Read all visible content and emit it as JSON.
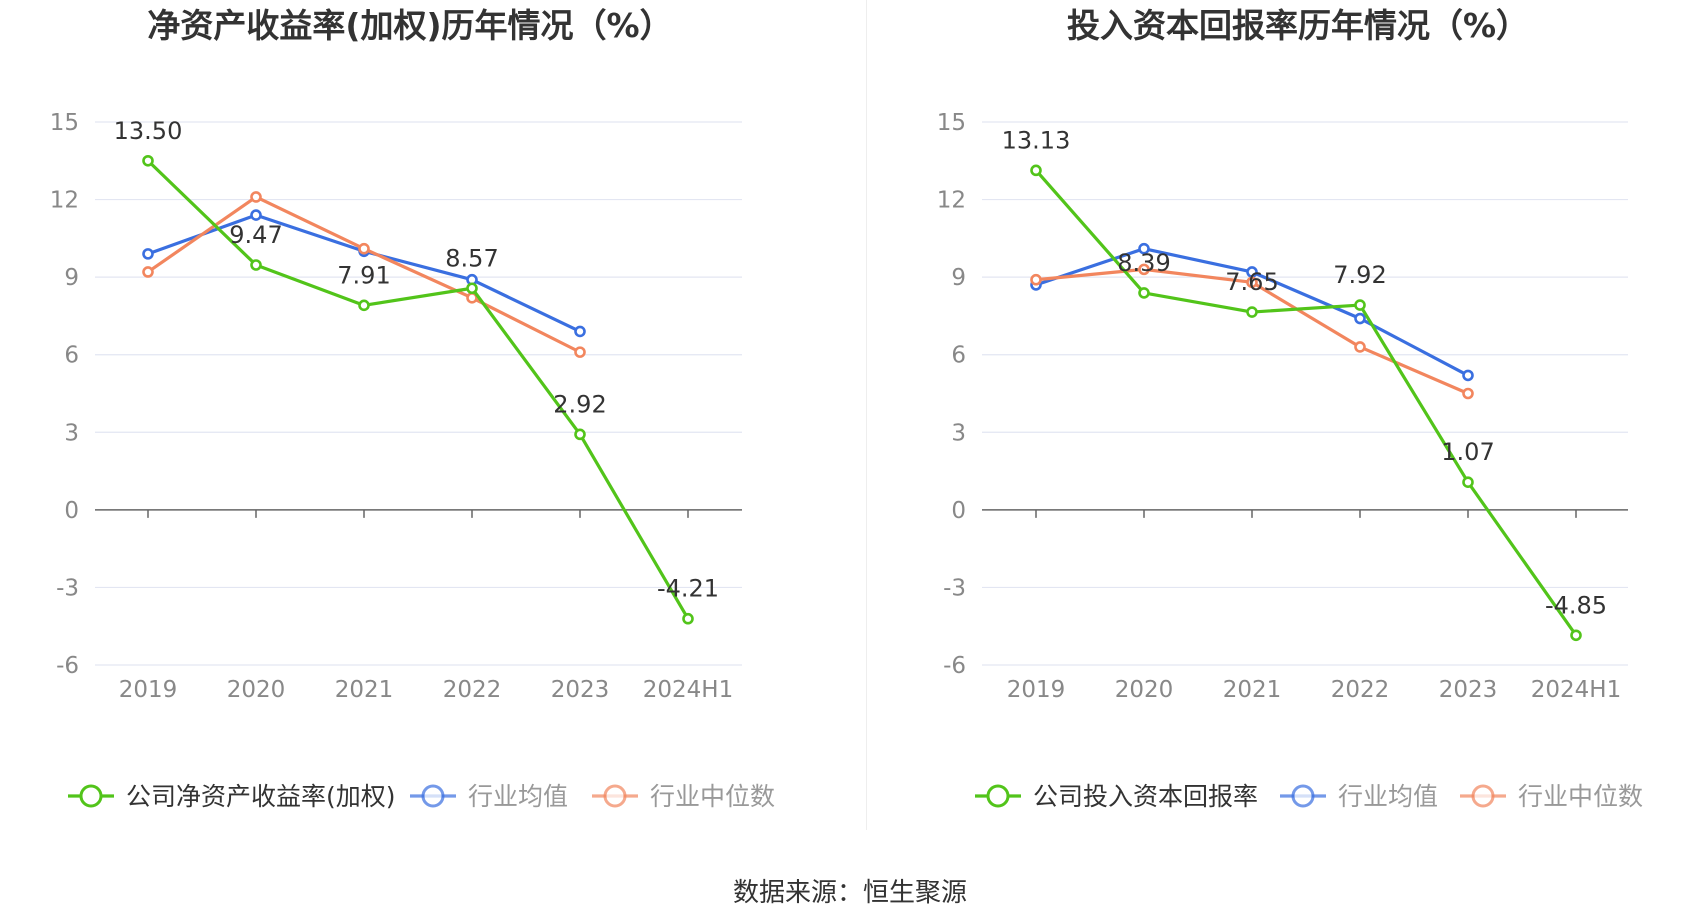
{
  "footer": {
    "source": "数据来源：恒生聚源"
  },
  "colors": {
    "company": "#52c41a",
    "avg": "#3a6fe0",
    "median": "#f2865e",
    "grid": "#e3e6f2",
    "axis": "#666666",
    "tick": "#888888"
  },
  "chart_data": [
    {
      "type": "line",
      "title": "净资产收益率(加权)历年情况（%）",
      "categories": [
        "2019",
        "2020",
        "2021",
        "2022",
        "2023",
        "2024H1"
      ],
      "ylim": [
        -6,
        15
      ],
      "yticks": [
        -6,
        -3,
        0,
        3,
        6,
        9,
        12,
        15
      ],
      "grid": true,
      "legend_position": "bottom",
      "series": [
        {
          "name": "公司净资产收益率(加权)",
          "key": "company",
          "values": [
            13.5,
            9.47,
            7.91,
            8.57,
            2.92,
            -4.21
          ],
          "labels": [
            "13.50",
            "9.47",
            "7.91",
            "8.57",
            "2.92",
            "-4.21"
          ]
        },
        {
          "name": "行业均值",
          "key": "avg",
          "values": [
            9.9,
            11.4,
            10.0,
            8.9,
            6.9,
            null
          ]
        },
        {
          "name": "行业中位数",
          "key": "median",
          "values": [
            9.2,
            12.1,
            10.1,
            8.2,
            6.1,
            null
          ]
        }
      ]
    },
    {
      "type": "line",
      "title": "投入资本回报率历年情况（%）",
      "categories": [
        "2019",
        "2020",
        "2021",
        "2022",
        "2023",
        "2024H1"
      ],
      "ylim": [
        -6,
        15
      ],
      "yticks": [
        -6,
        -3,
        0,
        3,
        6,
        9,
        12,
        15
      ],
      "grid": true,
      "legend_position": "bottom",
      "series": [
        {
          "name": "公司投入资本回报率",
          "key": "company",
          "values": [
            13.13,
            8.39,
            7.65,
            7.92,
            1.07,
            -4.85
          ],
          "labels": [
            "13.13",
            "8.39",
            "7.65",
            "7.92",
            "1.07",
            "-4.85"
          ]
        },
        {
          "name": "行业均值",
          "key": "avg",
          "values": [
            8.7,
            10.1,
            9.2,
            7.4,
            5.2,
            null
          ]
        },
        {
          "name": "行业中位数",
          "key": "median",
          "values": [
            8.9,
            9.3,
            8.8,
            6.3,
            4.5,
            null
          ]
        }
      ]
    }
  ]
}
